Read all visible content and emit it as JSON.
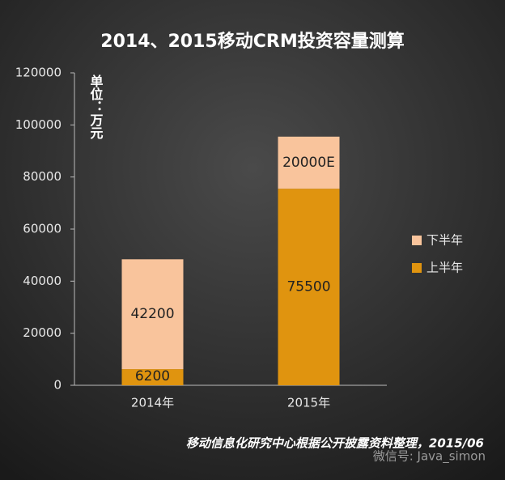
{
  "chart_data": {
    "type": "stacked_bar",
    "title": "2014、2015移动CRM投资容量测算",
    "unit_label": "单位：万元",
    "categories": [
      "2014年",
      "2015年"
    ],
    "series": [
      {
        "name": "上半年",
        "color": "#e0940f",
        "values": [
          6200,
          75500
        ]
      },
      {
        "name": "下半年",
        "color": "#f9c49c",
        "values": [
          42200,
          20000
        ],
        "value_labels": [
          "42200",
          "20000E"
        ]
      }
    ],
    "ylim": [
      0,
      120000
    ],
    "yticks": [
      0,
      20000,
      40000,
      60000,
      80000,
      100000,
      120000
    ],
    "legend": "right",
    "source": "移动信息化研究中心根据公开披露资料整理，2015/06",
    "watermark": "微信号: Java_simon"
  }
}
